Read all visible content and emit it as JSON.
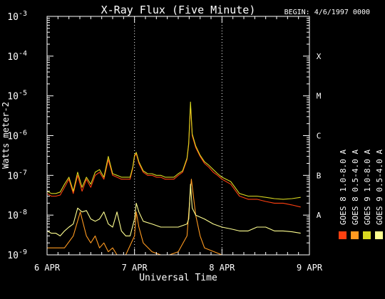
{
  "chart_data": {
    "type": "line",
    "title": "X-Ray Flux (Five Minute)",
    "begin_label": "BEGIN: 4/6/1997 0000",
    "xlabel": "Universal Time",
    "ylabel": "Watts meter-2",
    "x_units": "days since 1997-04-06 0000 UT",
    "xlim": [
      0,
      3
    ],
    "x_ticks": [
      {
        "value": 0,
        "label": "6 APR"
      },
      {
        "value": 1,
        "label": "7 APR"
      },
      {
        "value": 2,
        "label": "8 APR"
      },
      {
        "value": 3,
        "label": "9 APR"
      }
    ],
    "y_scale": "log",
    "ylim": [
      1e-09,
      0.001
    ],
    "y_ticks": [
      {
        "value": 1e-09,
        "base": "10",
        "exp": "-9"
      },
      {
        "value": 1e-08,
        "base": "10",
        "exp": "-8"
      },
      {
        "value": 1e-07,
        "base": "10",
        "exp": "-7"
      },
      {
        "value": 1e-06,
        "base": "10",
        "exp": "-6"
      },
      {
        "value": 1e-05,
        "base": "10",
        "exp": "-5"
      },
      {
        "value": 0.0001,
        "base": "10",
        "exp": "-4"
      },
      {
        "value": 0.001,
        "base": "10",
        "exp": "-3"
      }
    ],
    "flare_classes": [
      {
        "label": "A",
        "value": 1e-08
      },
      {
        "label": "B",
        "value": 1e-07
      },
      {
        "label": "C",
        "value": 1e-06
      },
      {
        "label": "M",
        "value": 1e-05
      },
      {
        "label": "X",
        "value": 0.0001
      }
    ],
    "grid": {
      "vertical_dotted_at": [
        1,
        2
      ]
    },
    "legend_position": "right",
    "series": [
      {
        "name": "GOES 8 1.0-8.0 A",
        "color": "#ff4010",
        "x": [
          0,
          0.05,
          0.1,
          0.15,
          0.2,
          0.25,
          0.3,
          0.35,
          0.4,
          0.45,
          0.5,
          0.55,
          0.6,
          0.65,
          0.7,
          0.75,
          0.8,
          0.85,
          0.9,
          0.95,
          0.98,
          1.0,
          1.02,
          1.05,
          1.1,
          1.15,
          1.2,
          1.25,
          1.3,
          1.35,
          1.4,
          1.45,
          1.5,
          1.55,
          1.6,
          1.62,
          1.64,
          1.66,
          1.7,
          1.75,
          1.8,
          1.85,
          1.9,
          1.95,
          2.0,
          2.1,
          2.2,
          2.3,
          2.4,
          2.5,
          2.6,
          2.7,
          2.8,
          2.9
        ],
        "y": [
          3.5e-08,
          3e-08,
          3e-08,
          3.2e-08,
          5e-08,
          8e-08,
          3.5e-08,
          1e-07,
          4e-08,
          8e-08,
          5e-08,
          1e-07,
          1.2e-07,
          8e-08,
          2.5e-07,
          1e-07,
          9e-08,
          8e-08,
          8e-08,
          8e-08,
          1.5e-07,
          3e-07,
          3.5e-07,
          2e-07,
          1.2e-07,
          1e-07,
          1e-07,
          9e-08,
          9e-08,
          8e-08,
          8e-08,
          8e-08,
          1e-07,
          1.2e-07,
          2.5e-07,
          6e-07,
          6e-06,
          1e-06,
          5e-07,
          3e-07,
          2e-07,
          1.6e-07,
          1.2e-07,
          1e-07,
          8e-08,
          6e-08,
          3e-08,
          2.5e-08,
          2.5e-08,
          2.2e-08,
          2e-08,
          2e-08,
          1.8e-08,
          1.6e-08
        ]
      },
      {
        "name": "GOES 8 0.5-4.0 A",
        "color": "#ff9a20",
        "x": [
          0,
          0.1,
          0.2,
          0.3,
          0.38,
          0.4,
          0.45,
          0.5,
          0.55,
          0.6,
          0.65,
          0.7,
          0.75,
          0.8,
          0.9,
          1.0,
          1.02,
          1.05,
          1.1,
          1.2,
          1.3,
          1.4,
          1.5,
          1.6,
          1.65,
          1.7,
          1.75,
          1.8,
          2.0,
          2.2,
          2.4,
          2.6,
          2.8,
          2.9
        ],
        "y": [
          1.5e-09,
          1.5e-09,
          1.5e-09,
          3e-09,
          1.2e-08,
          8e-09,
          3e-09,
          2e-09,
          3e-09,
          1.5e-09,
          2e-09,
          1.2e-09,
          1.5e-09,
          1e-09,
          1e-09,
          3e-09,
          1.2e-08,
          5e-09,
          2e-09,
          1.2e-09,
          1e-09,
          1e-09,
          1.2e-09,
          3e-09,
          8e-08,
          1e-08,
          3e-09,
          1.5e-09,
          1e-09,
          1e-09,
          1e-09,
          1e-09,
          1e-09,
          1e-09
        ]
      },
      {
        "name": "GOES 9 1.0-8.0 A",
        "color": "#d8d820",
        "x": [
          0,
          0.05,
          0.1,
          0.15,
          0.2,
          0.25,
          0.3,
          0.35,
          0.4,
          0.45,
          0.5,
          0.55,
          0.6,
          0.65,
          0.7,
          0.75,
          0.8,
          0.85,
          0.9,
          0.95,
          0.98,
          1.0,
          1.02,
          1.05,
          1.1,
          1.15,
          1.2,
          1.25,
          1.3,
          1.35,
          1.4,
          1.45,
          1.5,
          1.55,
          1.6,
          1.62,
          1.64,
          1.66,
          1.7,
          1.75,
          1.8,
          1.85,
          1.9,
          1.95,
          2.0,
          2.1,
          2.2,
          2.3,
          2.4,
          2.5,
          2.6,
          2.7,
          2.8,
          2.9
        ],
        "y": [
          4e-08,
          3.5e-08,
          3.5e-08,
          3.8e-08,
          6e-08,
          9e-08,
          4e-08,
          1.2e-07,
          5e-08,
          9e-08,
          6e-08,
          1.2e-07,
          1.4e-07,
          9e-08,
          3e-07,
          1.1e-07,
          1e-07,
          9e-08,
          9e-08,
          9e-08,
          1.6e-07,
          3.2e-07,
          3.8e-07,
          2.2e-07,
          1.3e-07,
          1.1e-07,
          1.1e-07,
          1e-07,
          1e-07,
          9e-08,
          9e-08,
          9e-08,
          1.1e-07,
          1.3e-07,
          2.7e-07,
          6.5e-07,
          7e-06,
          1.1e-06,
          5.5e-07,
          3.2e-07,
          2.2e-07,
          1.8e-07,
          1.4e-07,
          1.1e-07,
          9e-08,
          7e-08,
          3.5e-08,
          3e-08,
          3e-08,
          2.8e-08,
          2.6e-08,
          2.5e-08,
          2.6e-08,
          2.8e-08
        ]
      },
      {
        "name": "GOES 9 0.5-4.0 A",
        "color": "#ffff90",
        "x": [
          0,
          0.05,
          0.1,
          0.15,
          0.2,
          0.25,
          0.3,
          0.35,
          0.4,
          0.45,
          0.5,
          0.55,
          0.6,
          0.65,
          0.7,
          0.75,
          0.8,
          0.85,
          0.9,
          0.95,
          1.0,
          1.02,
          1.05,
          1.1,
          1.2,
          1.3,
          1.4,
          1.5,
          1.6,
          1.62,
          1.64,
          1.66,
          1.7,
          1.8,
          1.9,
          2.0,
          2.1,
          2.2,
          2.3,
          2.4,
          2.5,
          2.6,
          2.7,
          2.8,
          2.9
        ],
        "y": [
          4e-09,
          3.5e-09,
          3.5e-09,
          3e-09,
          4e-09,
          5e-09,
          6e-09,
          1.5e-08,
          1.2e-08,
          1.3e-08,
          8e-09,
          7e-09,
          8e-09,
          1.2e-08,
          6e-09,
          5e-09,
          1.2e-08,
          4e-09,
          3e-09,
          3e-09,
          8e-09,
          2e-08,
          1.2e-08,
          7e-09,
          6e-09,
          5e-09,
          5e-09,
          5e-09,
          6e-09,
          8e-09,
          6e-08,
          1.5e-08,
          1e-08,
          8e-09,
          6e-09,
          5e-09,
          4.5e-09,
          4e-09,
          4e-09,
          5e-09,
          5e-09,
          4e-09,
          4e-09,
          3.8e-09,
          3.5e-09
        ]
      }
    ]
  }
}
